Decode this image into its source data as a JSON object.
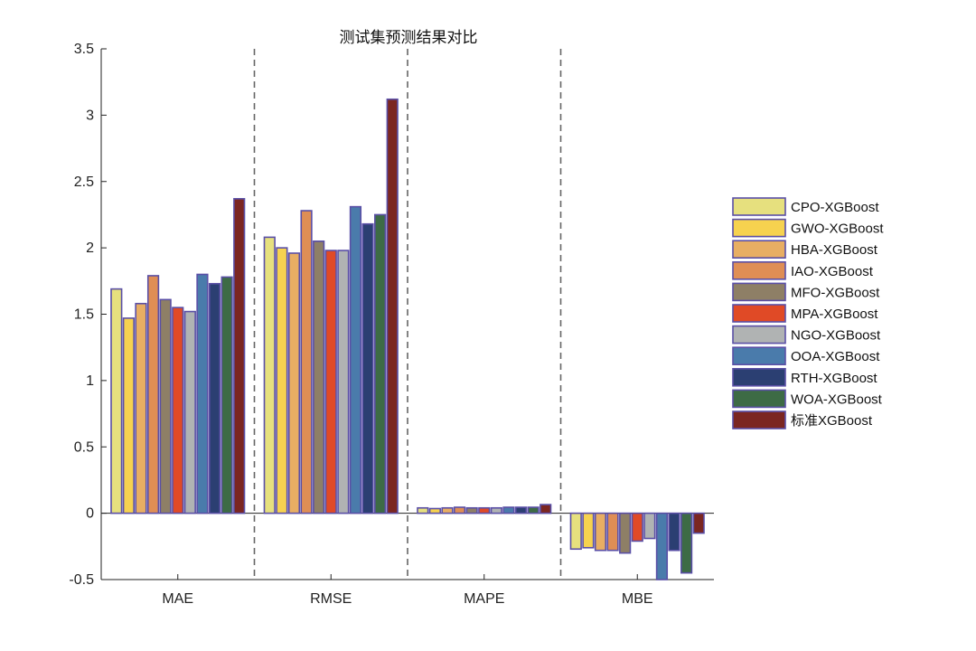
{
  "chart_data": {
    "type": "bar",
    "title": "测试集预测结果对比",
    "categories": [
      "MAE",
      "RMSE",
      "MAPE",
      "MBE"
    ],
    "ylim": [
      -0.5,
      3.5
    ],
    "yticks": [
      "-0.5",
      "0",
      "0.5",
      "1",
      "1.5",
      "2",
      "2.5",
      "3",
      "3.5"
    ],
    "grid": false,
    "legend_position": "right",
    "bar_edge_color": "#5a4fa6",
    "separator_color": "#666666",
    "series": [
      {
        "name": "CPO-XGBoost",
        "color": "#e6e07e",
        "values": [
          1.69,
          2.08,
          0.04,
          -0.27
        ]
      },
      {
        "name": "GWO-XGBoost",
        "color": "#f6d24f",
        "values": [
          1.47,
          2.0,
          0.035,
          -0.26
        ]
      },
      {
        "name": "HBA-XGBoost",
        "color": "#e8ae63",
        "values": [
          1.58,
          1.96,
          0.04,
          -0.28
        ]
      },
      {
        "name": "IAO-XGBoost",
        "color": "#df8e55",
        "values": [
          1.79,
          2.28,
          0.045,
          -0.28
        ]
      },
      {
        "name": "MFO-XGBoost",
        "color": "#8e7f66",
        "values": [
          1.61,
          2.05,
          0.04,
          -0.3
        ]
      },
      {
        "name": "MPA-XGBoost",
        "color": "#e04a26",
        "values": [
          1.55,
          1.98,
          0.04,
          -0.21
        ]
      },
      {
        "name": "NGO-XGBoost",
        "color": "#b0b3b3",
        "values": [
          1.52,
          1.98,
          0.04,
          -0.19
        ]
      },
      {
        "name": "OOA-XGBoost",
        "color": "#4a7bab",
        "values": [
          1.8,
          2.31,
          0.045,
          -0.5
        ]
      },
      {
        "name": "RTH-XGBoost",
        "color": "#2b3f72",
        "values": [
          1.73,
          2.18,
          0.045,
          -0.28
        ]
      },
      {
        "name": "WOA-XGBoost",
        "color": "#3d6b45",
        "values": [
          1.78,
          2.25,
          0.045,
          -0.45
        ]
      },
      {
        "name": "标准XGBoost",
        "color": "#7b2621",
        "values": [
          2.37,
          3.12,
          0.065,
          -0.15
        ]
      }
    ]
  }
}
